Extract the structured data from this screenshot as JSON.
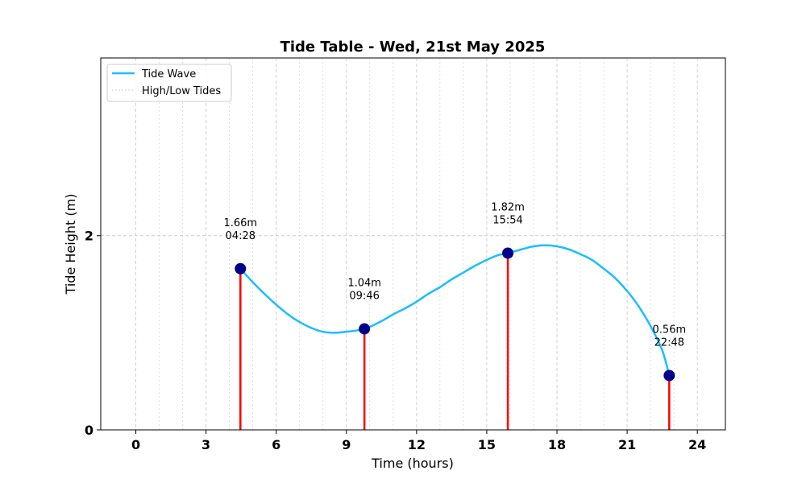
{
  "chart_data": {
    "type": "line",
    "title": "Tide Table - Wed, 21st May 2025",
    "xlabel": "Time (hours)",
    "ylabel": "Tide Height (m)",
    "xlim": [
      -1.5,
      25.2
    ],
    "ylim": [
      0,
      3.83
    ],
    "xticks": [
      0,
      3,
      6,
      9,
      12,
      15,
      18,
      21,
      24
    ],
    "xtick_labels": [
      "0",
      "3",
      "6",
      "9",
      "12",
      "15",
      "18",
      "21",
      "24"
    ],
    "yticks": [
      0,
      2
    ],
    "ytick_labels": [
      "0",
      "2"
    ],
    "grid": true,
    "legend_position": "upper-left",
    "legend": {
      "wave": "Tide Wave",
      "stems": "High/Low Tides"
    },
    "colors": {
      "wave": "#1abeff",
      "stem": "#ff0000",
      "marker": "#00008b",
      "grid": "#cccccc"
    },
    "series": [
      {
        "name": "Tide Wave",
        "x": [
          4.47,
          5.0,
          5.5,
          6.0,
          6.5,
          7.0,
          7.5,
          8.0,
          8.5,
          9.0,
          9.77,
          10.5,
          11.0,
          11.5,
          12.0,
          12.5,
          13.0,
          13.5,
          14.0,
          14.5,
          15.0,
          15.5,
          15.9,
          16.5,
          17.0,
          17.5,
          18.0,
          18.5,
          19.0,
          19.5,
          20.0,
          20.5,
          21.0,
          21.5,
          22.0,
          22.5,
          22.8
        ],
        "y": [
          1.66,
          1.52,
          1.4,
          1.29,
          1.19,
          1.11,
          1.05,
          1.01,
          1.0,
          1.01,
          1.04,
          1.12,
          1.19,
          1.25,
          1.32,
          1.4,
          1.47,
          1.55,
          1.62,
          1.69,
          1.75,
          1.8,
          1.82,
          1.86,
          1.89,
          1.9,
          1.89,
          1.86,
          1.81,
          1.75,
          1.66,
          1.56,
          1.43,
          1.27,
          1.07,
          0.82,
          0.56
        ]
      }
    ],
    "tides": [
      {
        "time": 4.47,
        "height": 1.66,
        "label_height": "1.66m",
        "label_time": "04:28"
      },
      {
        "time": 9.77,
        "height": 1.04,
        "label_height": "1.04m",
        "label_time": "09:46"
      },
      {
        "time": 15.9,
        "height": 1.82,
        "label_height": "1.82m",
        "label_time": "15:54"
      },
      {
        "time": 22.8,
        "height": 0.56,
        "label_height": "0.56m",
        "label_time": "22:48"
      }
    ]
  }
}
